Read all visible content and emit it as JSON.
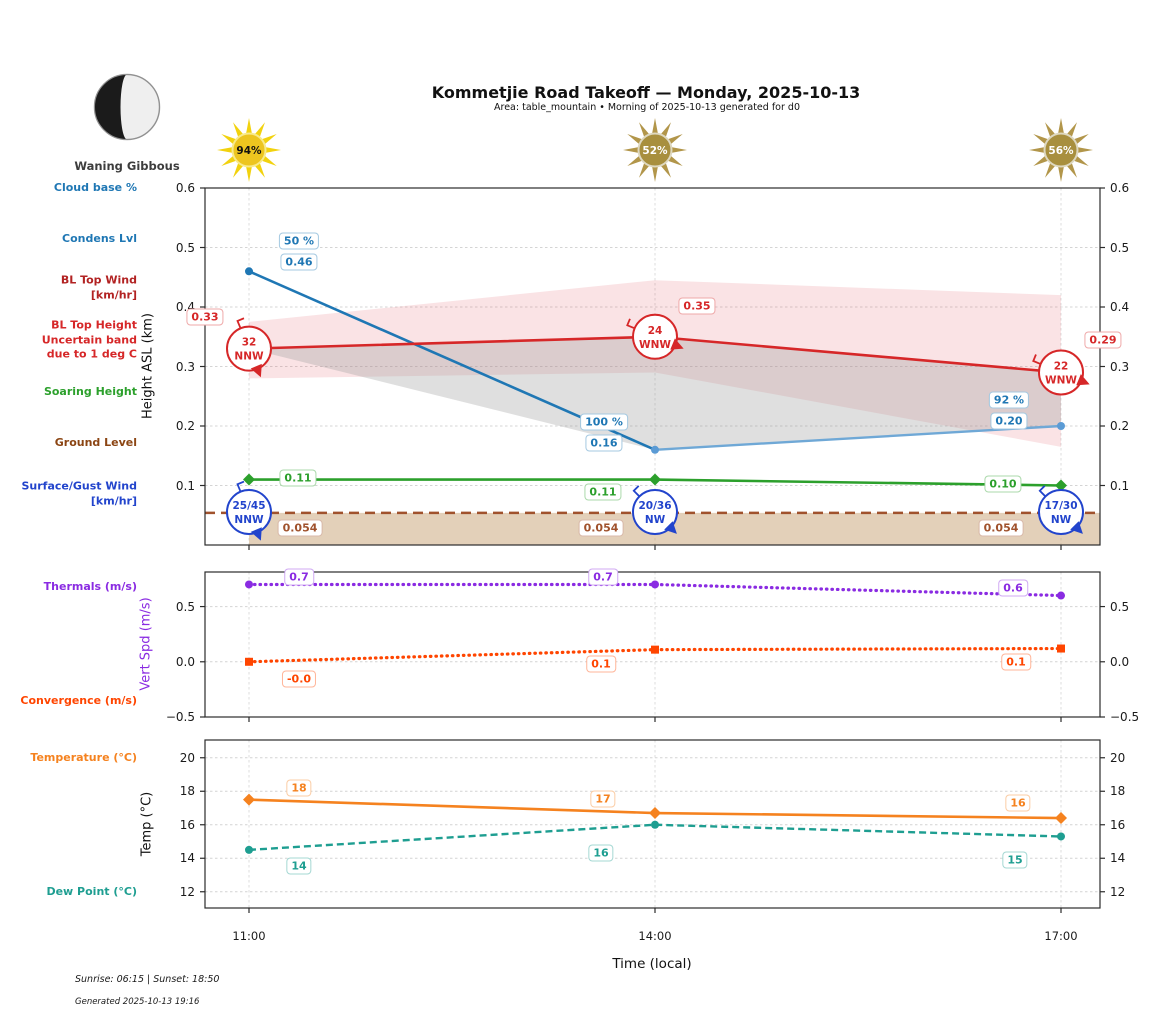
{
  "header": {
    "title": "Kommetjie Road Takeoff — Monday, 2025-10-13",
    "subtitle": "Area: table_mountain • Morning of 2025-10-13 generated for d0",
    "moon": {
      "label": "Waning Gibbous"
    },
    "suns": [
      {
        "percent": "94%",
        "brightness": "bright"
      },
      {
        "percent": "52%",
        "brightness": "dim"
      },
      {
        "percent": "56%",
        "brightness": "dim"
      }
    ]
  },
  "row_labels": {
    "cloud_base": {
      "text": "Cloud base %",
      "color": "#1f77b4"
    },
    "condens_lvl": {
      "text": "Condens Lvl",
      "color": "#1f77b4"
    },
    "bl_top_wind": {
      "text": "BL Top Wind\n[km/hr]",
      "color": "#b22222"
    },
    "bl_top_height": {
      "text": "BL Top Height\nUncertain band\ndue to 1 deg C",
      "color": "#d62728"
    },
    "soaring_height": {
      "text": "Soaring Height",
      "color": "#2ca02c"
    },
    "ground_level": {
      "text": "Ground Level",
      "color": "#8B4513"
    },
    "surface_wind": {
      "text": "Surface/Gust Wind\n[km/hr]",
      "color": "#2244cc"
    },
    "thermals": {
      "text": "Thermals (m/s)",
      "color": "#8a2be2"
    },
    "convergence": {
      "text": "Convergence (m/s)",
      "color": "#ff4500"
    },
    "temperature": {
      "text": "Temperature (°C)",
      "color": "#f5821f"
    },
    "dew_point": {
      "text": "Dew Point (°C)",
      "color": "#1e9e91"
    }
  },
  "axes": {
    "x_categories": [
      "11:00",
      "14:00",
      "17:00"
    ]
  },
  "chart_data": [
    {
      "type": "line",
      "ylabel": "Height ASL (km)",
      "ylim": [
        0,
        0.6
      ],
      "yticks": [
        {
          "v": 0.1,
          "label": "0.1"
        },
        {
          "v": 0.2,
          "label": "0.2"
        },
        {
          "v": 0.3,
          "label": "0.3"
        },
        {
          "v": 0.4,
          "label": "0.4"
        },
        {
          "v": 0.5,
          "label": "0.5"
        },
        {
          "v": 0.6,
          "label": "0.6"
        }
      ],
      "x": [
        "11:00",
        "14:00",
        "17:00"
      ],
      "grid": true,
      "series": [
        {
          "id": "condens_lvl",
          "name": "Condensation level / Cloud base %",
          "color": "#1f77b4",
          "values": [
            0.46,
            0.16,
            0.2
          ],
          "value_labels": [
            "0.46",
            "0.16",
            "0.20"
          ],
          "pct_labels": [
            "50 %",
            "100 %",
            "92 %"
          ],
          "marker": "dot",
          "fade_last": true
        },
        {
          "id": "bl_top",
          "name": "BL Top Height",
          "color": "#d62728",
          "values": [
            0.33,
            0.35,
            0.29
          ],
          "value_labels": [
            "0.33",
            "0.35",
            "0.29"
          ],
          "wind_labels": [
            [
              "32",
              "NNW"
            ],
            [
              "24",
              "WNW"
            ],
            [
              "22",
              "WNW"
            ]
          ],
          "wind_dirs": [
            "NNW",
            "WNW",
            "WNW"
          ]
        },
        {
          "id": "soaring",
          "name": "Soaring Height",
          "color": "#2ca02c",
          "values": [
            0.11,
            0.11,
            0.1
          ],
          "value_labels": [
            "0.11",
            "0.11",
            "0.10"
          ],
          "marker": "diamond"
        },
        {
          "id": "ground",
          "name": "Ground Level",
          "color": "#a0522d",
          "values": [
            0.054,
            0.054,
            0.054
          ],
          "value_labels": [
            "0.054",
            "0.054",
            "0.054"
          ],
          "dashed": true,
          "full_width": true,
          "fill_below": "#c8a274"
        },
        {
          "id": "surface_wind",
          "name": "Surface/Gust Wind",
          "color": "#2244cc",
          "wind_labels": [
            [
              "25/45",
              "NNW"
            ],
            [
              "20/36",
              "NW"
            ],
            [
              "17/30",
              "NW"
            ]
          ],
          "wind_dirs": [
            "NNW",
            "NW",
            "NW"
          ]
        }
      ],
      "bands": [
        {
          "id": "bl_top_uncertainty",
          "name": "BL Top Height uncertain band",
          "color": "#e05060",
          "opacity": 0.16,
          "upper": [
            0.375,
            0.445,
            0.42
          ],
          "lower": [
            0.28,
            0.29,
            0.165
          ]
        },
        {
          "id": "cloudbase_band",
          "name": "Cloud base band",
          "color": "#9a9a9a",
          "opacity": 0.32,
          "upper": [
            0.33,
            0.35,
            0.29
          ],
          "lower": [
            0.33,
            0.16,
            0.2
          ]
        }
      ]
    },
    {
      "type": "line",
      "ylabel": "Vert Spd (m/s)",
      "ylim": [
        -0.5,
        0.813
      ],
      "yticks": [
        {
          "v": -0.5,
          "label": "−0.5"
        },
        {
          "v": 0,
          "label": "0.0"
        },
        {
          "v": 0.5,
          "label": "0.5"
        }
      ],
      "x": [
        "11:00",
        "14:00",
        "17:00"
      ],
      "grid": true,
      "series": [
        {
          "id": "thermals",
          "name": "Thermals",
          "color": "#8a2be2",
          "values": [
            0.7,
            0.7,
            0.6
          ],
          "value_labels": [
            "0.7",
            "0.7",
            "0.6"
          ],
          "dotted": true,
          "marker": "dot"
        },
        {
          "id": "convergence",
          "name": "Convergence",
          "color": "#ff4500",
          "values": [
            0.0,
            0.11,
            0.12
          ],
          "value_labels": [
            "-0.0",
            "0.1",
            "0.1"
          ],
          "dotted": true,
          "marker": "square"
        }
      ]
    },
    {
      "type": "line",
      "ylabel": "Temp (°C)",
      "ylim": [
        11.03,
        21.06
      ],
      "yticks": [
        {
          "v": 12,
          "label": "12"
        },
        {
          "v": 14,
          "label": "14"
        },
        {
          "v": 16,
          "label": "16"
        },
        {
          "v": 18,
          "label": "18"
        },
        {
          "v": 20,
          "label": "20"
        }
      ],
      "x": [
        "11:00",
        "14:00",
        "17:00"
      ],
      "grid": true,
      "series": [
        {
          "id": "temperature",
          "name": "Temperature",
          "color": "#f5821f",
          "values": [
            17.5,
            16.7,
            16.4
          ],
          "value_labels": [
            "18",
            "17",
            "16"
          ],
          "marker": "diamond"
        },
        {
          "id": "dew_point",
          "name": "Dew Point",
          "color": "#1e9e91",
          "values": [
            14.5,
            16.0,
            15.3
          ],
          "value_labels": [
            "14",
            "16",
            "15"
          ],
          "dashed": true,
          "marker": "dot"
        }
      ]
    }
  ],
  "footer": {
    "xlabel": "Time (local)",
    "sunrise_sunset": "Sunrise: 06:15 | Sunset: 18:50",
    "generated": "Generated 2025-10-13 19:16"
  }
}
